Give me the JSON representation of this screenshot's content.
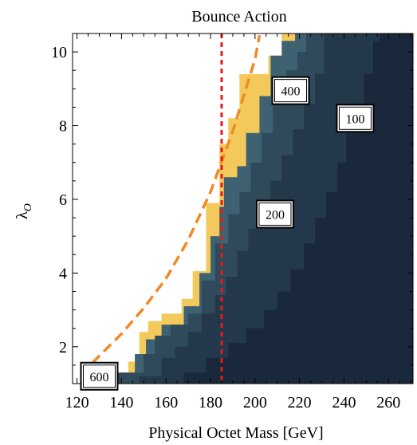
{
  "chart_data": {
    "type": "contour",
    "title": "Bounce Action",
    "xlabel": "Physical Octet Mass [GeV]",
    "ylabel": "λ",
    "ylabel_subscript": "O",
    "xlim": [
      118,
      271
    ],
    "ylim": [
      1.0,
      10.5
    ],
    "x_ticks": [
      120,
      140,
      160,
      180,
      200,
      220,
      240,
      260
    ],
    "y_ticks": [
      2,
      4,
      6,
      8,
      10
    ],
    "x_tick_labels": [
      "120",
      "140",
      "160",
      "180",
      "200",
      "220",
      "240",
      "260"
    ],
    "y_tick_labels": [
      "2",
      "4",
      "6",
      "8",
      "10"
    ],
    "colors": {
      "region_100": "#19283a",
      "region_200": "#23394b",
      "region_300": "#2f4a5b",
      "region_400": "#3f6272",
      "region_600": "#f2c95a",
      "curve": "#f08a24",
      "vline": "#e8191b"
    },
    "regions": [
      {
        "name": "region_600",
        "boundary": [
          [
            124.5,
            1.0
          ],
          [
            124.5,
            1.1
          ],
          [
            143,
            1.1
          ],
          [
            143,
            1.6
          ],
          [
            148,
            1.6
          ],
          [
            148,
            2.4
          ],
          [
            152,
            2.4
          ],
          [
            152,
            2.7
          ],
          [
            158,
            2.7
          ],
          [
            158,
            2.9
          ],
          [
            167,
            2.9
          ],
          [
            167,
            3.3
          ],
          [
            172,
            3.3
          ],
          [
            172,
            4.05
          ],
          [
            178,
            4.05
          ],
          [
            178,
            5.9
          ],
          [
            184,
            5.9
          ],
          [
            184,
            7.5
          ],
          [
            188,
            7.5
          ],
          [
            188,
            8.2
          ],
          [
            193,
            8.2
          ],
          [
            193,
            9.4
          ],
          [
            206,
            9.4
          ],
          [
            206,
            9.9
          ],
          [
            212,
            9.9
          ],
          [
            212,
            10.5
          ]
        ]
      },
      {
        "name": "region_400",
        "boundary": [
          [
            131,
            1.0
          ],
          [
            131,
            1.2
          ],
          [
            146,
            1.2
          ],
          [
            146,
            1.8
          ],
          [
            151,
            1.8
          ],
          [
            151,
            2.2
          ],
          [
            158,
            2.2
          ],
          [
            158,
            2.6
          ],
          [
            168,
            2.6
          ],
          [
            168,
            3.1
          ],
          [
            175,
            3.1
          ],
          [
            175,
            4.0
          ],
          [
            180,
            4.0
          ],
          [
            180,
            5.0
          ],
          [
            184,
            5.0
          ],
          [
            184,
            5.8
          ],
          [
            186,
            5.8
          ],
          [
            186,
            6.6
          ],
          [
            192,
            6.6
          ],
          [
            192,
            6.9
          ],
          [
            196,
            6.9
          ],
          [
            196,
            7.8
          ],
          [
            202,
            7.8
          ],
          [
            202,
            8.8
          ],
          [
            207,
            8.8
          ],
          [
            207,
            9.9
          ],
          [
            212,
            9.9
          ],
          [
            212,
            10.3
          ],
          [
            218,
            10.3
          ],
          [
            218,
            10.5
          ]
        ]
      },
      {
        "name": "region_300",
        "boundary": [
          [
            137,
            1.0
          ],
          [
            137,
            1.3
          ],
          [
            150,
            1.3
          ],
          [
            150,
            1.8
          ],
          [
            155,
            1.8
          ],
          [
            155,
            2.3
          ],
          [
            162,
            2.3
          ],
          [
            162,
            2.6
          ],
          [
            170,
            2.6
          ],
          [
            170,
            2.9
          ],
          [
            176,
            2.9
          ],
          [
            176,
            3.8
          ],
          [
            182,
            3.8
          ],
          [
            182,
            4.8
          ],
          [
            188,
            4.8
          ],
          [
            188,
            5.6
          ],
          [
            193,
            5.6
          ],
          [
            193,
            6.2
          ],
          [
            198,
            6.2
          ],
          [
            198,
            7.0
          ],
          [
            203,
            7.0
          ],
          [
            203,
            7.8
          ],
          [
            208,
            7.8
          ],
          [
            208,
            8.6
          ],
          [
            214,
            8.6
          ],
          [
            214,
            9.5
          ],
          [
            219,
            9.5
          ],
          [
            219,
            10.0
          ],
          [
            223,
            10.0
          ],
          [
            223,
            10.5
          ]
        ]
      },
      {
        "name": "region_200",
        "boundary": [
          [
            148,
            1.0
          ],
          [
            148,
            1.2
          ],
          [
            158,
            1.2
          ],
          [
            158,
            1.7
          ],
          [
            164,
            1.7
          ],
          [
            164,
            2.0
          ],
          [
            170,
            2.0
          ],
          [
            170,
            2.4
          ],
          [
            176,
            2.4
          ],
          [
            176,
            2.9
          ],
          [
            182,
            2.9
          ],
          [
            182,
            3.4
          ],
          [
            187,
            3.4
          ],
          [
            187,
            3.9
          ],
          [
            192,
            3.9
          ],
          [
            192,
            4.6
          ],
          [
            197,
            4.6
          ],
          [
            197,
            5.2
          ],
          [
            202,
            5.2
          ],
          [
            202,
            5.8
          ],
          [
            207,
            5.8
          ],
          [
            207,
            6.5
          ],
          [
            212,
            6.5
          ],
          [
            212,
            7.2
          ],
          [
            217,
            7.2
          ],
          [
            217,
            7.9
          ],
          [
            222,
            7.9
          ],
          [
            222,
            8.6
          ],
          [
            227,
            8.6
          ],
          [
            227,
            9.4
          ],
          [
            231,
            9.4
          ],
          [
            231,
            10.5
          ]
        ]
      },
      {
        "name": "region_100",
        "boundary": [
          [
            168,
            1.0
          ],
          [
            168,
            1.3
          ],
          [
            178,
            1.3
          ],
          [
            178,
            1.7
          ],
          [
            188,
            1.7
          ],
          [
            188,
            2.1
          ],
          [
            196,
            2.1
          ],
          [
            196,
            2.5
          ],
          [
            204,
            2.5
          ],
          [
            204,
            3.0
          ],
          [
            210,
            3.0
          ],
          [
            210,
            3.5
          ],
          [
            216,
            3.5
          ],
          [
            216,
            4.1
          ],
          [
            222,
            4.1
          ],
          [
            222,
            4.8
          ],
          [
            227,
            4.8
          ],
          [
            227,
            5.5
          ],
          [
            232,
            5.5
          ],
          [
            232,
            6.2
          ],
          [
            237,
            6.2
          ],
          [
            237,
            7.0
          ],
          [
            241,
            7.0
          ],
          [
            241,
            7.8
          ],
          [
            245,
            7.8
          ],
          [
            245,
            8.6
          ],
          [
            249,
            8.6
          ],
          [
            249,
            9.4
          ],
          [
            253,
            9.4
          ],
          [
            253,
            10.3
          ],
          [
            256,
            10.3
          ],
          [
            256,
            10.5
          ]
        ]
      }
    ],
    "contour_labels": [
      {
        "text": "600",
        "x": 130,
        "y": 1.2
      },
      {
        "text": "400",
        "x": 216,
        "y": 8.95
      },
      {
        "text": "200",
        "x": 209,
        "y": 5.6
      },
      {
        "text": "100",
        "x": 245,
        "y": 8.2
      }
    ],
    "dashed_curve": {
      "name": "orange dashed curve",
      "points": [
        [
          122,
          1.25
        ],
        [
          130,
          1.75
        ],
        [
          140,
          2.35
        ],
        [
          150,
          3.05
        ],
        [
          160,
          3.85
        ],
        [
          170,
          4.9
        ],
        [
          180,
          6.2
        ],
        [
          190,
          7.85
        ],
        [
          200,
          9.8
        ],
        [
          202,
          10.45
        ]
      ]
    },
    "vertical_line": {
      "x": 185
    }
  }
}
